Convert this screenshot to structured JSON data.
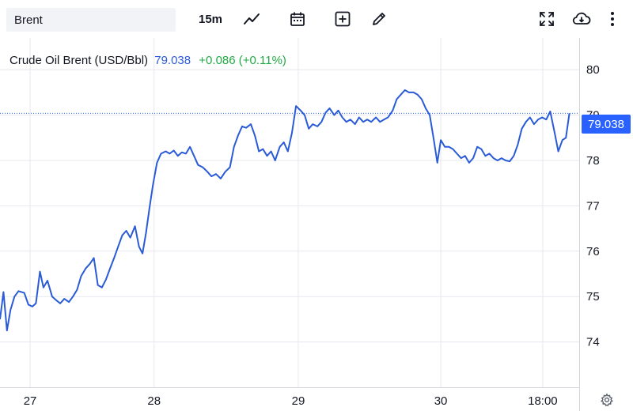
{
  "toolbar": {
    "symbol": "Brent",
    "interval": "15m",
    "icons": [
      "chart-type-icon",
      "calendar-icon",
      "add-indicator-icon",
      "draw-icon",
      "fullscreen-icon",
      "download-icon",
      "more-icon"
    ]
  },
  "legend": {
    "name": "Crude Oil Brent (USD/Bbl)",
    "price": "79.038",
    "change": "+0.086 (+0.11%)"
  },
  "last_price_label": "79.038",
  "colors": {
    "line": "#2a5bd7",
    "accent": "#2962ff",
    "positive": "#22ab45",
    "grid": "#e6e8ee"
  },
  "chart_data": {
    "type": "line",
    "title": "Crude Oil Brent (USD/Bbl)",
    "xlabel": "",
    "ylabel": "",
    "ylim": [
      73.0,
      80.7
    ],
    "xlim": [
      0,
      100
    ],
    "y_ticks": [
      74,
      75,
      76,
      77,
      78,
      79,
      80
    ],
    "x_ticks": [
      {
        "label": "27",
        "x": 5.2
      },
      {
        "label": "28",
        "x": 26.6
      },
      {
        "label": "29",
        "x": 51.5
      },
      {
        "label": "30",
        "x": 76.1
      },
      {
        "label": "18:00",
        "x": 93.7
      }
    ],
    "last_value": 79.038,
    "grid": true,
    "series": [
      {
        "name": "",
        "points": [
          [
            0,
            74.5
          ],
          [
            0.6,
            75.1
          ],
          [
            1.2,
            74.25
          ],
          [
            1.8,
            74.7
          ],
          [
            2.5,
            75.0
          ],
          [
            3.2,
            75.12
          ],
          [
            4.2,
            75.08
          ],
          [
            4.9,
            74.82
          ],
          [
            5.6,
            74.78
          ],
          [
            6.2,
            74.85
          ],
          [
            6.9,
            75.55
          ],
          [
            7.5,
            75.2
          ],
          [
            8.2,
            75.35
          ],
          [
            9.0,
            75.0
          ],
          [
            9.7,
            74.92
          ],
          [
            10.4,
            74.85
          ],
          [
            11.1,
            74.95
          ],
          [
            11.9,
            74.88
          ],
          [
            12.6,
            75.0
          ],
          [
            13.3,
            75.15
          ],
          [
            14.0,
            75.45
          ],
          [
            14.8,
            75.62
          ],
          [
            15.5,
            75.72
          ],
          [
            16.2,
            75.85
          ],
          [
            16.9,
            75.25
          ],
          [
            17.6,
            75.2
          ],
          [
            18.3,
            75.38
          ],
          [
            19.0,
            75.62
          ],
          [
            19.7,
            75.85
          ],
          [
            20.4,
            76.1
          ],
          [
            21.1,
            76.35
          ],
          [
            21.8,
            76.45
          ],
          [
            22.5,
            76.3
          ],
          [
            23.3,
            76.55
          ],
          [
            24.0,
            76.1
          ],
          [
            24.6,
            75.95
          ],
          [
            25.2,
            76.4
          ],
          [
            25.8,
            76.95
          ],
          [
            26.4,
            77.45
          ],
          [
            27.1,
            77.95
          ],
          [
            27.8,
            78.15
          ],
          [
            28.6,
            78.2
          ],
          [
            29.3,
            78.15
          ],
          [
            30.0,
            78.22
          ],
          [
            30.7,
            78.1
          ],
          [
            31.4,
            78.18
          ],
          [
            32.1,
            78.15
          ],
          [
            32.8,
            78.3
          ],
          [
            33.5,
            78.1
          ],
          [
            34.2,
            77.9
          ],
          [
            35.0,
            77.85
          ],
          [
            35.8,
            77.75
          ],
          [
            36.5,
            77.65
          ],
          [
            37.3,
            77.7
          ],
          [
            38.1,
            77.6
          ],
          [
            38.9,
            77.75
          ],
          [
            39.7,
            77.85
          ],
          [
            40.4,
            78.3
          ],
          [
            41.1,
            78.55
          ],
          [
            41.8,
            78.75
          ],
          [
            42.5,
            78.72
          ],
          [
            43.3,
            78.8
          ],
          [
            44.0,
            78.55
          ],
          [
            44.7,
            78.2
          ],
          [
            45.4,
            78.25
          ],
          [
            46.1,
            78.1
          ],
          [
            46.8,
            78.2
          ],
          [
            47.5,
            78.0
          ],
          [
            48.3,
            78.3
          ],
          [
            49.0,
            78.4
          ],
          [
            49.7,
            78.2
          ],
          [
            50.4,
            78.6
          ],
          [
            51.1,
            79.2
          ],
          [
            51.9,
            79.1
          ],
          [
            52.6,
            79.0
          ],
          [
            53.3,
            78.7
          ],
          [
            54.0,
            78.8
          ],
          [
            54.8,
            78.75
          ],
          [
            55.5,
            78.85
          ],
          [
            56.2,
            79.05
          ],
          [
            56.9,
            79.15
          ],
          [
            57.7,
            79.0
          ],
          [
            58.4,
            79.1
          ],
          [
            59.1,
            78.95
          ],
          [
            59.8,
            78.85
          ],
          [
            60.5,
            78.9
          ],
          [
            61.3,
            78.8
          ],
          [
            62.0,
            78.95
          ],
          [
            62.7,
            78.85
          ],
          [
            63.4,
            78.9
          ],
          [
            64.1,
            78.85
          ],
          [
            64.9,
            78.95
          ],
          [
            65.6,
            78.85
          ],
          [
            66.3,
            78.9
          ],
          [
            67.0,
            78.95
          ],
          [
            67.8,
            79.1
          ],
          [
            68.5,
            79.35
          ],
          [
            69.2,
            79.45
          ],
          [
            69.9,
            79.55
          ],
          [
            70.6,
            79.5
          ],
          [
            71.4,
            79.5
          ],
          [
            72.1,
            79.45
          ],
          [
            72.8,
            79.35
          ],
          [
            73.5,
            79.15
          ],
          [
            74.2,
            79.0
          ],
          [
            74.9,
            78.45
          ],
          [
            75.5,
            77.95
          ],
          [
            76.1,
            78.45
          ],
          [
            76.8,
            78.3
          ],
          [
            77.5,
            78.3
          ],
          [
            78.2,
            78.25
          ],
          [
            78.9,
            78.15
          ],
          [
            79.6,
            78.05
          ],
          [
            80.3,
            78.1
          ],
          [
            81.0,
            77.95
          ],
          [
            81.7,
            78.05
          ],
          [
            82.4,
            78.3
          ],
          [
            83.1,
            78.25
          ],
          [
            83.8,
            78.1
          ],
          [
            84.5,
            78.15
          ],
          [
            85.2,
            78.05
          ],
          [
            85.9,
            78.0
          ],
          [
            86.6,
            78.05
          ],
          [
            87.3,
            78.0
          ],
          [
            88.0,
            77.98
          ],
          [
            88.7,
            78.1
          ],
          [
            89.4,
            78.35
          ],
          [
            90.1,
            78.7
          ],
          [
            90.8,
            78.85
          ],
          [
            91.5,
            78.95
          ],
          [
            92.2,
            78.8
          ],
          [
            92.9,
            78.9
          ],
          [
            93.6,
            78.95
          ],
          [
            94.3,
            78.9
          ],
          [
            95.0,
            79.08
          ],
          [
            95.7,
            78.65
          ],
          [
            96.4,
            78.2
          ],
          [
            97.1,
            78.45
          ],
          [
            97.7,
            78.5
          ],
          [
            98.3,
            79.04
          ]
        ]
      }
    ]
  }
}
